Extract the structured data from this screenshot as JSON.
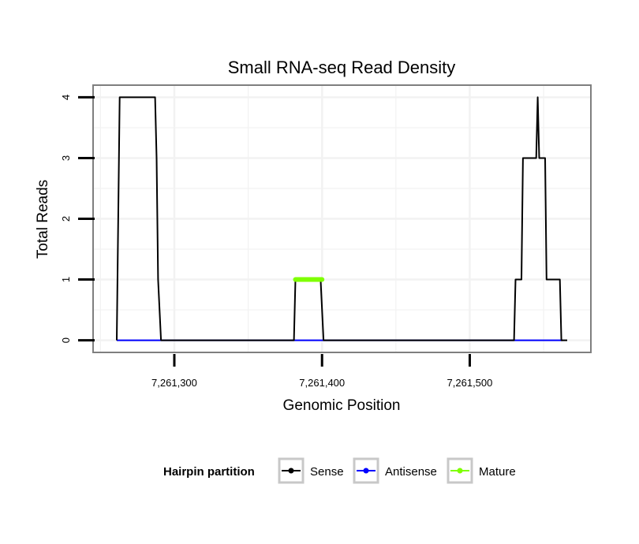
{
  "chart_data": {
    "type": "line",
    "title": "Small RNA-seq Read Density",
    "xlabel": "Genomic Position",
    "ylabel": "Total Reads",
    "xlim": [
      7261245,
      7261582
    ],
    "ylim": [
      -0.2,
      4.2
    ],
    "x_ticks": [
      7261300,
      7261400,
      7261500
    ],
    "x_tick_labels": [
      "7,261,300",
      "7,261,400",
      "7,261,500"
    ],
    "y_ticks": [
      0,
      1,
      2,
      3,
      4
    ],
    "y_tick_labels": [
      "0",
      "1",
      "2",
      "3",
      "4"
    ],
    "grid": true,
    "series": [
      {
        "name": "Sense",
        "color": "#000000",
        "points": [
          [
            7261261,
            0
          ],
          [
            7261263,
            4
          ],
          [
            7261287,
            4
          ],
          [
            7261288,
            3
          ],
          [
            7261289,
            1
          ],
          [
            7261291,
            0
          ],
          [
            7261381,
            0
          ],
          [
            7261382,
            1
          ],
          [
            7261399,
            1
          ],
          [
            7261401,
            0
          ],
          [
            7261530,
            0
          ],
          [
            7261531,
            1
          ],
          [
            7261535,
            1
          ],
          [
            7261536,
            3
          ],
          [
            7261545,
            3
          ],
          [
            7261546,
            4
          ],
          [
            7261547,
            3
          ],
          [
            7261551,
            3
          ],
          [
            7261552,
            1
          ],
          [
            7261561,
            1
          ],
          [
            7261562,
            0
          ],
          [
            7261566,
            0
          ]
        ]
      },
      {
        "name": "Antisense",
        "color": "#0000ff",
        "points": [
          [
            7261261,
            0
          ],
          [
            7261563,
            0
          ]
        ]
      },
      {
        "name": "Mature",
        "color": "#7fff00",
        "points": [
          [
            7261382,
            1
          ],
          [
            7261400,
            1
          ]
        ]
      }
    ],
    "legend": {
      "title": "Hairpin partition",
      "position": "bottom",
      "entries": [
        {
          "label": "Sense",
          "color": "#000000"
        },
        {
          "label": "Antisense",
          "color": "#0000ff"
        },
        {
          "label": "Mature",
          "color": "#7fff00"
        }
      ]
    }
  }
}
